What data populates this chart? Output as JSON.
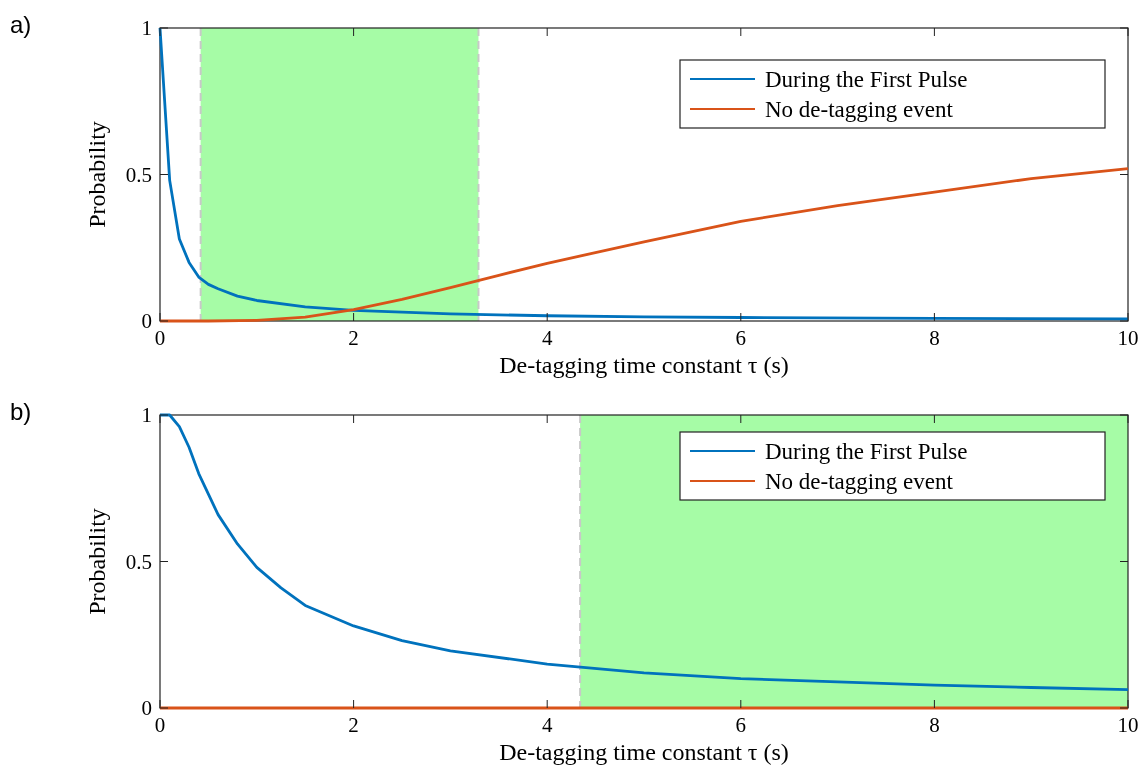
{
  "chart_data": [
    {
      "type": "line",
      "xlabel": "De-tagging time constant τ (s)",
      "ylabel": "Probability",
      "annotations": [
        "a)"
      ],
      "xlim": [
        0,
        10
      ],
      "ylim": [
        0,
        1
      ],
      "xticks": [
        0,
        2,
        4,
        6,
        8,
        10
      ],
      "yticks": [
        0,
        0.5,
        1
      ],
      "legend": "top right",
      "grid": false,
      "bands": [
        {
          "axis": "x",
          "from": 0.42,
          "to": 3.29,
          "color": "#a6fca6"
        }
      ],
      "ref_lines": [
        {
          "axis": "x",
          "value": 0.42,
          "color": "#c8c8c8",
          "line_style": "dashed"
        },
        {
          "axis": "x",
          "value": 3.29,
          "color": "#c8c8c8",
          "line_style": "dashed"
        }
      ],
      "series": [
        {
          "name": "During the First Pulse",
          "color": "#0072bd",
          "x": [
            0,
            0.1,
            0.2,
            0.3,
            0.4,
            0.5,
            0.6,
            0.8,
            1,
            1.5,
            2,
            3,
            4,
            5,
            6,
            8,
            10
          ],
          "values": [
            1,
            0.48,
            0.28,
            0.2,
            0.15,
            0.125,
            0.11,
            0.085,
            0.07,
            0.048,
            0.036,
            0.024,
            0.018,
            0.014,
            0.012,
            0.009,
            0.007
          ]
        },
        {
          "name": "No de-tagging event",
          "color": "#d95319",
          "x": [
            0,
            0.5,
            1,
            1.5,
            2,
            2.5,
            3,
            3.5,
            4,
            5,
            6,
            7,
            8,
            9,
            10
          ],
          "values": [
            0,
            0,
            0.002,
            0.013,
            0.039,
            0.074,
            0.114,
            0.156,
            0.197,
            0.27,
            0.34,
            0.394,
            0.44,
            0.486,
            0.52
          ]
        }
      ]
    },
    {
      "type": "line",
      "xlabel": "De-tagging time constant τ (s)",
      "ylabel": "Probability",
      "annotations": [
        "b)"
      ],
      "xlim": [
        0,
        10
      ],
      "ylim": [
        0,
        1
      ],
      "xticks": [
        0,
        2,
        4,
        6,
        8,
        10
      ],
      "yticks": [
        0,
        0.5,
        1
      ],
      "legend": "top right",
      "grid": false,
      "bands": [
        {
          "axis": "x",
          "from": 4.34,
          "to": 10,
          "color": "#a6fca6"
        }
      ],
      "ref_lines": [
        {
          "axis": "x",
          "value": 4.34,
          "color": "#c8c8c8",
          "line_style": "dashed"
        }
      ],
      "series": [
        {
          "name": "During the First Pulse",
          "color": "#0072bd",
          "x": [
            0,
            0.1,
            0.2,
            0.3,
            0.4,
            0.5,
            0.6,
            0.8,
            1,
            1.25,
            1.5,
            2,
            2.5,
            3,
            4,
            5,
            6,
            7,
            8,
            9,
            10
          ],
          "values": [
            1,
            1,
            0.96,
            0.89,
            0.8,
            0.73,
            0.66,
            0.56,
            0.48,
            0.41,
            0.35,
            0.28,
            0.23,
            0.195,
            0.15,
            0.12,
            0.1,
            0.089,
            0.078,
            0.07,
            0.063
          ]
        },
        {
          "name": "No de-tagging event",
          "color": "#d95319",
          "x": [
            0,
            10
          ],
          "values": [
            0,
            0
          ]
        }
      ]
    }
  ]
}
